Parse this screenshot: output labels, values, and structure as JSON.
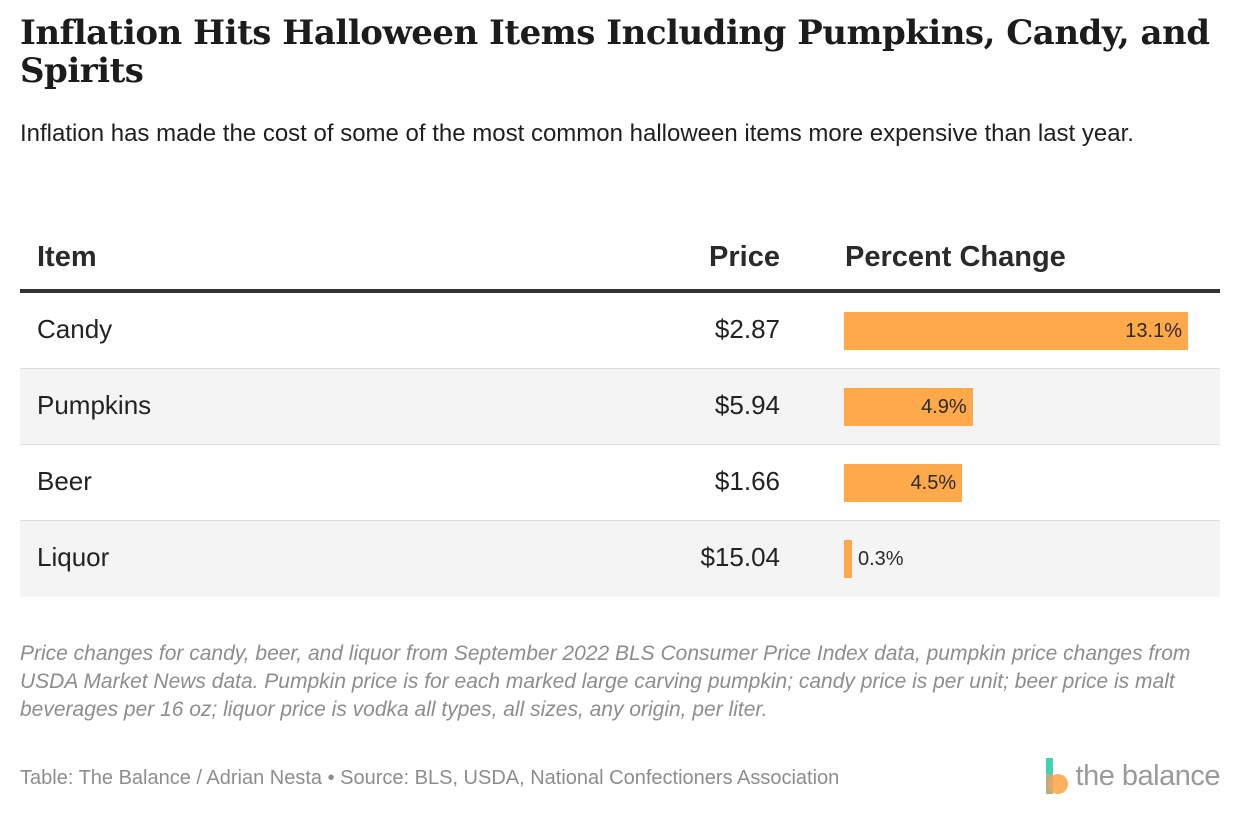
{
  "title": "Inflation Hits Halloween Items Including Pumpkins, Candy, and Spirits",
  "subtitle": "Inflation has made the cost of some of the most common halloween items more expensive than last year.",
  "headers": {
    "item": "Item",
    "price": "Price",
    "percent": "Percent Change"
  },
  "rows": [
    {
      "item": "Candy",
      "price": "$2.87",
      "pct_label": "13.1%"
    },
    {
      "item": "Pumpkins",
      "price": "$5.94",
      "pct_label": "4.9%"
    },
    {
      "item": "Beer",
      "price": "$1.66",
      "pct_label": "4.5%"
    },
    {
      "item": "Liquor",
      "price": "$15.04",
      "pct_label": "0.3%"
    }
  ],
  "chart_data": {
    "type": "table",
    "title": "Inflation Hits Halloween Items Including Pumpkins, Candy, and Spirits",
    "columns": [
      "Item",
      "Price",
      "Percent Change"
    ],
    "categories": [
      "Candy",
      "Pumpkins",
      "Beer",
      "Liquor"
    ],
    "prices": [
      2.87,
      5.94,
      1.66,
      15.04
    ],
    "values": [
      13.1,
      4.9,
      4.5,
      0.3
    ],
    "unit": "%",
    "xlim": [
      0,
      13.1
    ]
  },
  "colors": {
    "bar": "#ffa94a",
    "rule": "#333333",
    "muted": "#8d8d8d"
  },
  "note": "Price changes for candy, beer, and liquor from September 2022 BLS Consumer Price Index data, pumpkin price changes from USDA Market News data. Pumpkin price is for each marked large carving pumpkin; candy price is per unit; beer price is malt beverages per 16 oz; liquor price is vodka all types, all sizes, any origin, per liter.",
  "source": "Table: The Balance / Adrian Nesta • Source: BLS, USDA, National Confectioners Association",
  "logo": {
    "text": "the balance",
    "icon": "the-balance-logo-icon"
  }
}
